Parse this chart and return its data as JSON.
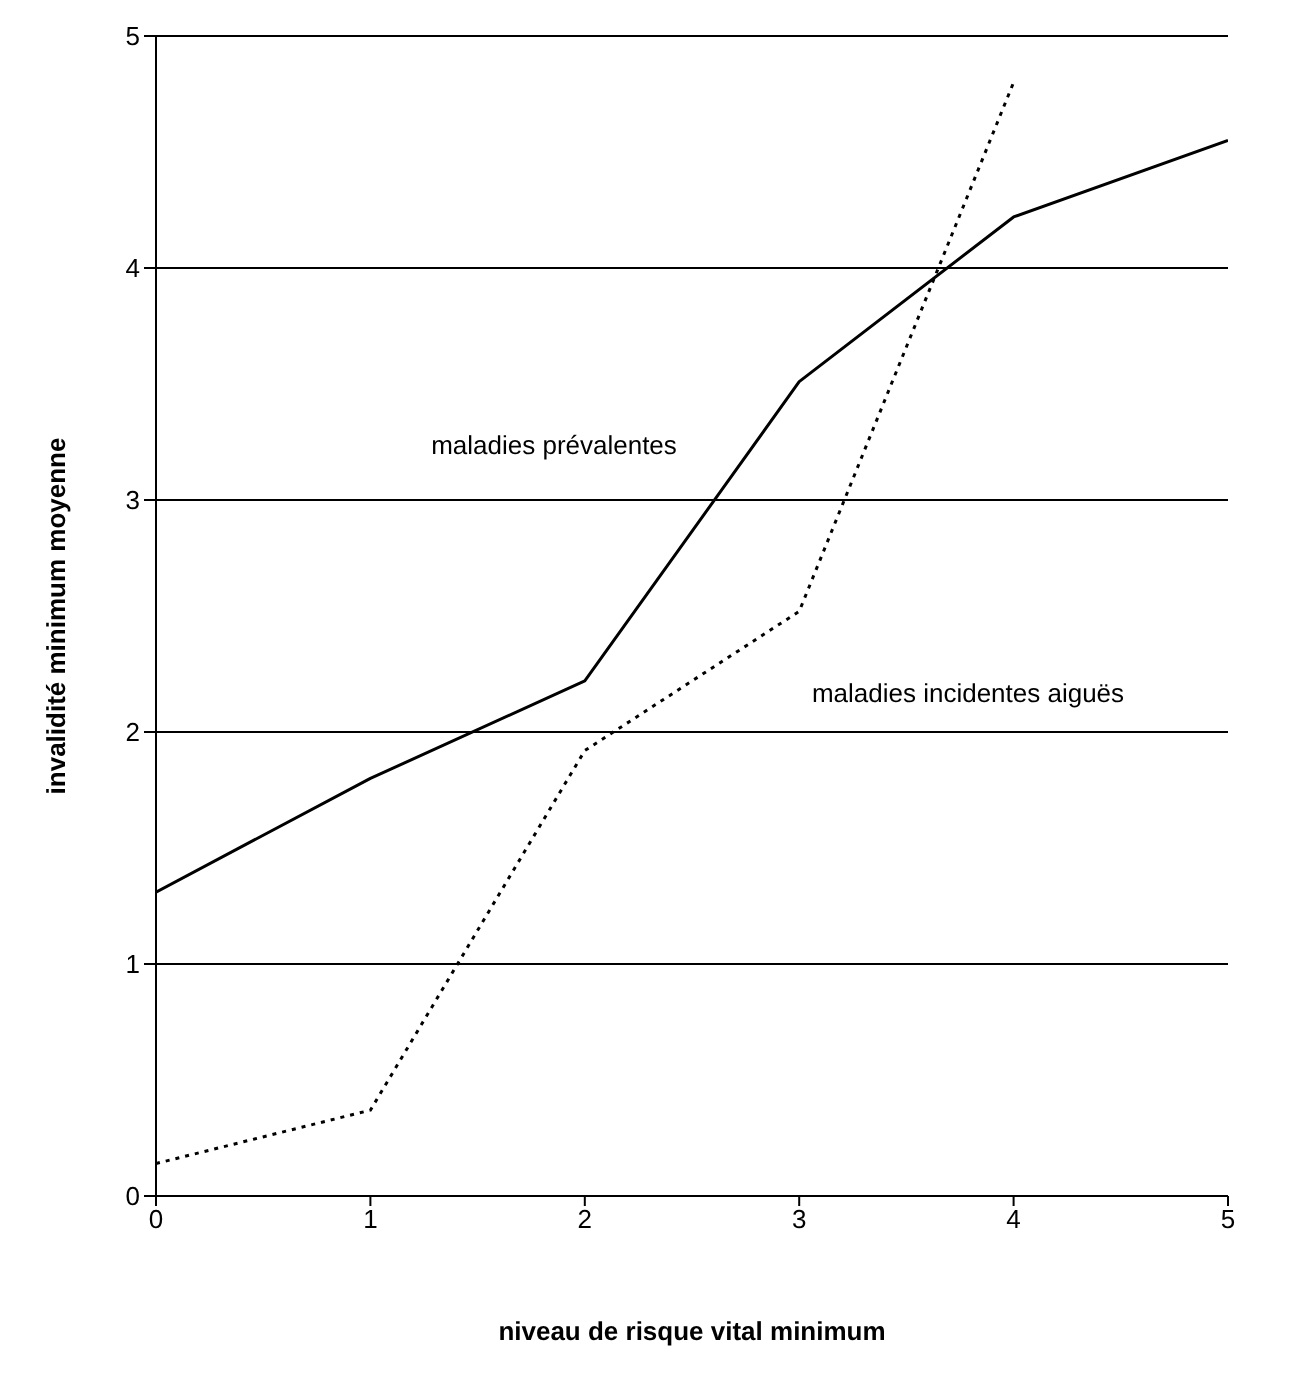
{
  "chart_data": {
    "type": "line",
    "xlabel": "niveau de risque vital minimum",
    "ylabel": "invalidité minimum moyenne",
    "x": [
      0,
      1,
      2,
      3,
      4,
      5
    ],
    "series": [
      {
        "name": "maladies prévalentes",
        "color": "#000000",
        "line_style": "solid",
        "values": [
          1.31,
          1.8,
          2.22,
          3.51,
          4.22,
          4.55
        ]
      },
      {
        "name": "maladies incidentes aiguës",
        "color": "#000000",
        "line_style": "dotted",
        "values": [
          0.14,
          0.37,
          1.92,
          2.52,
          4.8,
          null
        ]
      }
    ],
    "xlim": [
      0,
      5
    ],
    "ylim": [
      0,
      5
    ],
    "xticks": [
      0,
      1,
      2,
      3,
      4,
      5
    ],
    "yticks": [
      0,
      1,
      2,
      3,
      4,
      5
    ],
    "grid": "y",
    "marker": "none",
    "legend": false
  }
}
